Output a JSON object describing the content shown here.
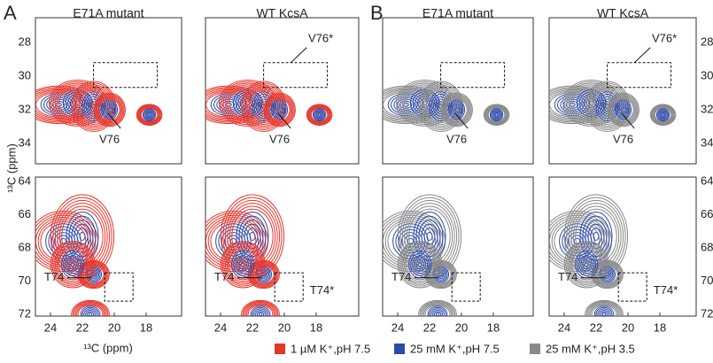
{
  "groups": [
    "A",
    "B"
  ],
  "panels": [
    {
      "title": "E71A mutant",
      "top_label": "V76",
      "bottom_label": "T74"
    },
    {
      "title": "WT KcsA",
      "top_label": "V76",
      "top_star": "V76*",
      "bottom_label": "T74",
      "bottom_star": "T74*"
    },
    {
      "title": "E71A mutant",
      "top_label": "V76",
      "bottom_label": "T74"
    },
    {
      "title": "WT KcsA",
      "top_label": "V76",
      "top_star": "V76*",
      "bottom_label": "T74",
      "bottom_star": "T74*"
    }
  ],
  "y_ticks_top": [
    28,
    30,
    32,
    34
  ],
  "y_ticks_bottom": [
    64,
    66,
    68,
    70,
    72
  ],
  "x_ticks": [
    24,
    22,
    20,
    18
  ],
  "axis_label": "¹³C (ppm)",
  "legend": [
    {
      "label": "1 µM K⁺,pH 7.5",
      "color": "#e8352b"
    },
    {
      "label": "25 mM K⁺,pH 7.5",
      "color": "#2e4aa8"
    },
    {
      "label": "25 mM K⁺,pH 3.5",
      "color": "#888888"
    }
  ]
}
